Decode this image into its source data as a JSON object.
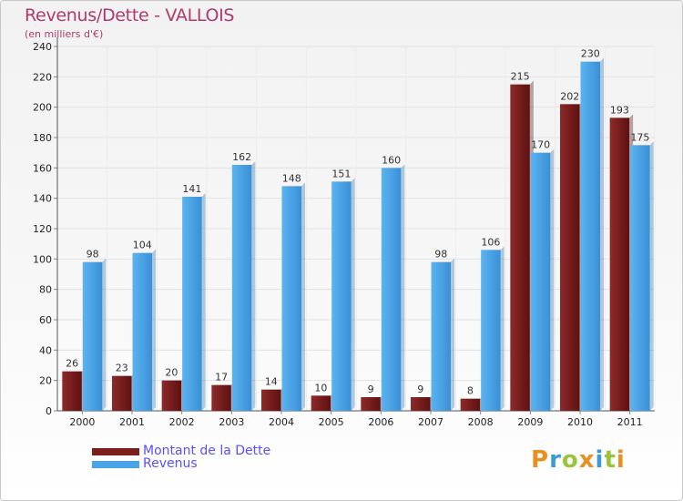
{
  "header": {
    "title": "Revenus/Dette - VALLOIS",
    "subtitle": "(en milliers d'€)"
  },
  "chart_data": {
    "type": "bar",
    "title": "Revenus/Dette - VALLOIS",
    "ylabel": "(en milliers d'€)",
    "xlabel": "",
    "categories": [
      "2000",
      "2001",
      "2002",
      "2003",
      "2004",
      "2005",
      "2006",
      "2007",
      "2008",
      "2009",
      "2010",
      "2011"
    ],
    "series": [
      {
        "name": "Montant de la Dette",
        "color": "#7a1e1e",
        "values": [
          26,
          23,
          20,
          17,
          14,
          10,
          9,
          9,
          8,
          215,
          202,
          193
        ]
      },
      {
        "name": "Revenus",
        "color": "#4aa3e6",
        "values": [
          98,
          104,
          141,
          162,
          148,
          151,
          160,
          98,
          106,
          170,
          230,
          175
        ]
      }
    ],
    "ylim": [
      0,
      240
    ],
    "yticks": [
      0,
      20,
      40,
      60,
      80,
      100,
      120,
      140,
      160,
      180,
      200,
      220,
      240
    ],
    "grid": true,
    "legend": "bottom-left"
  },
  "legend": {
    "items": [
      {
        "label": "Montant de la Dette",
        "color": "#7a1e1e"
      },
      {
        "label": "Revenus",
        "color": "#4aa3e6"
      }
    ]
  },
  "logo": {
    "text": "Proxiti",
    "colors": [
      "#e8901f",
      "#3a9bd8",
      "#9ac43a",
      "#e8901f",
      "#3a9bd8",
      "#9ac43a",
      "#e8901f"
    ]
  }
}
